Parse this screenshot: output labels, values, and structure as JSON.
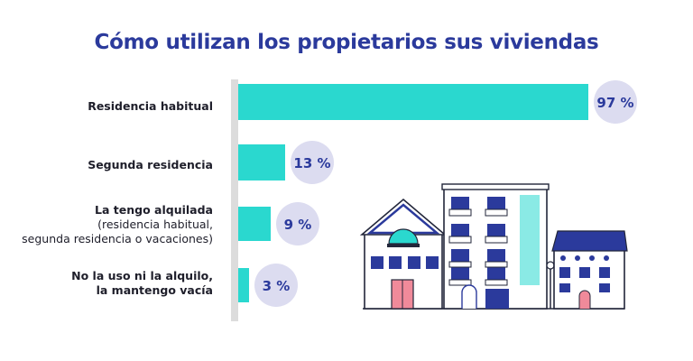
{
  "title": "Cómo utilizan los propietarios sus viviendas",
  "colors": {
    "bar": "#2ad8cf",
    "badge": "#dcdcf0",
    "badge_text": "#2b3a9c",
    "axis": "#dcdcdc"
  },
  "rows": [
    {
      "label": "Residencia habitual",
      "sublabel": "",
      "value_label": "97 %"
    },
    {
      "label": "Segunda residencia",
      "sublabel": "",
      "value_label": "13 %"
    },
    {
      "label": "La tengo alquilada",
      "sublabel": "(residencia habitual, segunda residencia o vacaciones)",
      "value_label": "9 %"
    },
    {
      "label": "No la uso ni la alquilo, la mantengo vacía",
      "sublabel": "",
      "value_label": "3 %"
    }
  ],
  "chart_data": {
    "type": "bar",
    "orientation": "horizontal",
    "categories": [
      "Residencia habitual",
      "Segunda residencia",
      "La tengo alquilada (residencia habitual, segunda residencia o vacaciones)",
      "No la uso ni la alquilo, la mantengo vacía"
    ],
    "values": [
      97,
      13,
      9,
      3
    ],
    "unit": "%",
    "title": "Cómo utilizan los propietarios sus viviendas",
    "xlim": [
      0,
      100
    ],
    "grid": false,
    "legend": "none"
  },
  "illustration": {
    "name": "houses-illustration"
  }
}
